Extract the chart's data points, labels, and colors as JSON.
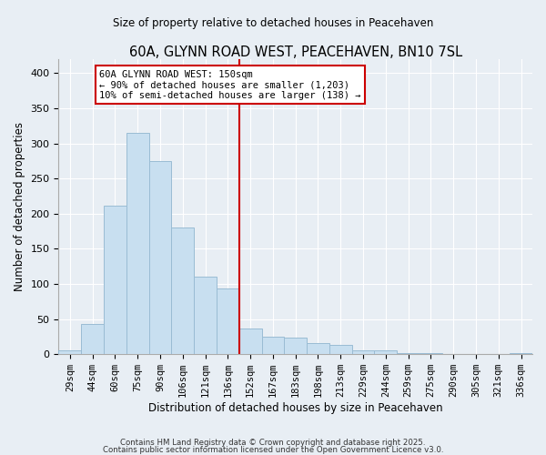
{
  "title": "60A, GLYNN ROAD WEST, PEACEHAVEN, BN10 7SL",
  "subtitle": "Size of property relative to detached houses in Peacehaven",
  "xlabel": "Distribution of detached houses by size in Peacehaven",
  "ylabel": "Number of detached properties",
  "bar_color": "#c8dff0",
  "bar_edge_color": "#9abcd4",
  "background_color": "#e8eef4",
  "grid_color": "#ffffff",
  "bin_labels": [
    "29sqm",
    "44sqm",
    "60sqm",
    "75sqm",
    "90sqm",
    "106sqm",
    "121sqm",
    "136sqm",
    "152sqm",
    "167sqm",
    "183sqm",
    "198sqm",
    "213sqm",
    "229sqm",
    "244sqm",
    "259sqm",
    "275sqm",
    "290sqm",
    "305sqm",
    "321sqm",
    "336sqm"
  ],
  "bar_heights": [
    5,
    43,
    212,
    315,
    275,
    180,
    110,
    93,
    37,
    25,
    24,
    16,
    13,
    6,
    5,
    2,
    1,
    0,
    0,
    0,
    2
  ],
  "vline_x_idx": 8,
  "vline_color": "#cc0000",
  "annotation_line1": "60A GLYNN ROAD WEST: 150sqm",
  "annotation_line2": "← 90% of detached houses are smaller (1,203)",
  "annotation_line3": "10% of semi-detached houses are larger (138) →",
  "annotation_box_color": "#ffffff",
  "annotation_box_edge": "#cc0000",
  "ylim": [
    0,
    420
  ],
  "yticks": [
    0,
    50,
    100,
    150,
    200,
    250,
    300,
    350,
    400
  ],
  "footer1": "Contains HM Land Registry data © Crown copyright and database right 2025.",
  "footer2": "Contains public sector information licensed under the Open Government Licence v3.0."
}
